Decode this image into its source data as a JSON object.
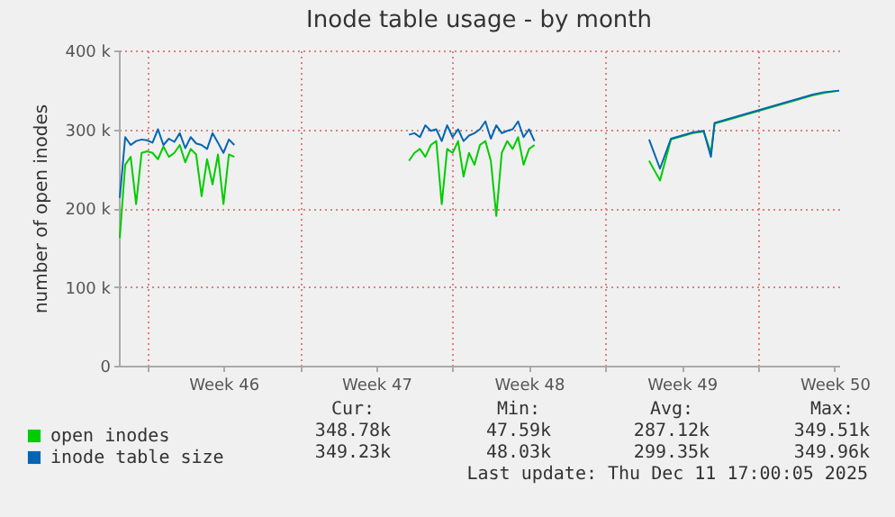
{
  "chart_data": {
    "type": "line",
    "title": "Inode table usage - by month",
    "ylabel": "number of open inodes",
    "x": [
      "2025-11-08T18:00",
      "2025-11-09T00:00",
      "2025-11-09T06:00",
      "2025-11-09T12:00",
      "2025-11-09T18:00",
      "2025-11-10T00:00",
      "2025-11-10T06:00",
      "2025-11-10T12:00",
      "2025-11-10T18:00",
      "2025-11-11T00:00",
      "2025-11-11T06:00",
      "2025-11-11T12:00",
      "2025-11-11T18:00",
      "2025-11-12T00:00",
      "2025-11-12T06:00",
      "2025-11-12T12:00",
      "2025-11-12T18:00",
      "2025-11-13T00:00",
      "2025-11-13T06:00",
      "2025-11-13T12:00",
      "2025-11-13T18:00",
      "2025-11-14T00:00",
      "2025-11-18T00:00",
      "2025-11-22T00:00",
      "2025-11-22T06:00",
      "2025-11-22T12:00",
      "2025-11-22T18:00",
      "2025-11-23T00:00",
      "2025-11-23T06:00",
      "2025-11-23T12:00",
      "2025-11-23T18:00",
      "2025-11-24T00:00",
      "2025-11-24T06:00",
      "2025-11-24T12:00",
      "2025-11-24T18:00",
      "2025-11-25T00:00",
      "2025-11-25T06:00",
      "2025-11-25T12:00",
      "2025-11-25T18:00",
      "2025-11-26T00:00",
      "2025-11-26T06:00",
      "2025-11-26T12:00",
      "2025-11-26T18:00",
      "2025-11-27T00:00",
      "2025-11-27T06:00",
      "2025-11-27T12:00",
      "2025-11-27T18:00",
      "2025-11-30T12:00",
      "2025-12-03T00:00",
      "2025-12-03T12:00",
      "2025-12-04T00:00",
      "2025-12-04T12:00",
      "2025-12-05T00:00",
      "2025-12-05T12:00",
      "2025-12-05T20:00",
      "2025-12-06T00:00",
      "2025-12-06T12:00",
      "2025-12-07T00:00",
      "2025-12-07T12:00",
      "2025-12-08T00:00",
      "2025-12-08T12:00",
      "2025-12-09T00:00",
      "2025-12-09T12:00",
      "2025-12-10T00:00",
      "2025-12-10T12:00",
      "2025-12-11T00:00",
      "2025-12-11T17:00"
    ],
    "series": [
      {
        "name": "open inodes",
        "color": "#00cc00",
        "values": [
          162000,
          255000,
          265000,
          205000,
          270000,
          272000,
          270000,
          262000,
          278000,
          265000,
          270000,
          280000,
          258000,
          275000,
          268000,
          215000,
          262000,
          230000,
          268000,
          205000,
          268000,
          265000,
          null,
          260000,
          270000,
          275000,
          265000,
          280000,
          285000,
          205000,
          275000,
          270000,
          285000,
          240000,
          270000,
          255000,
          280000,
          285000,
          260000,
          190000,
          270000,
          285000,
          275000,
          290000,
          255000,
          275000,
          280000,
          null,
          260000,
          235000,
          287000,
          291000,
          295000,
          297000,
          270000,
          307000,
          311000,
          315000,
          319000,
          323000,
          327000,
          331000,
          335000,
          339000,
          343000,
          346000,
          349000
        ]
      },
      {
        "name": "inode table size",
        "color": "#0066b3",
        "values": [
          213000,
          290000,
          280000,
          285000,
          287000,
          286000,
          283000,
          300000,
          280000,
          288000,
          284000,
          295000,
          276000,
          290000,
          282000,
          280000,
          275000,
          295000,
          283000,
          270000,
          287000,
          280000,
          null,
          293000,
          295000,
          290000,
          305000,
          298000,
          300000,
          285000,
          305000,
          290000,
          300000,
          285000,
          292000,
          295000,
          300000,
          310000,
          288000,
          305000,
          295000,
          298000,
          300000,
          310000,
          290000,
          300000,
          285000,
          null,
          287000,
          250000,
          288000,
          292000,
          296000,
          298000,
          265000,
          308000,
          312000,
          316000,
          320000,
          324000,
          328000,
          332000,
          336000,
          340000,
          344000,
          347000,
          349000
        ]
      }
    ],
    "xlim": [
      "2025-11-08T17:00",
      "2025-12-11T17:00"
    ],
    "xticks": [
      {
        "value": "2025-11-10T00:00",
        "label": null
      },
      {
        "value": "2025-11-13T12:00",
        "label": "Week 46"
      },
      {
        "value": "2025-11-17T00:00",
        "label": null
      },
      {
        "value": "2025-11-20T12:00",
        "label": "Week 47"
      },
      {
        "value": "2025-11-24T00:00",
        "label": null
      },
      {
        "value": "2025-11-27T12:00",
        "label": "Week 48"
      },
      {
        "value": "2025-12-01T00:00",
        "label": null
      },
      {
        "value": "2025-12-04T12:00",
        "label": "Week 49"
      },
      {
        "value": "2025-12-08T00:00",
        "label": null
      },
      {
        "value": "2025-12-11T12:00",
        "label": "Week 50"
      }
    ],
    "ylim": [
      0,
      400000
    ],
    "yticks": [
      0,
      {
        "value": 100000,
        "label": "100 k"
      },
      {
        "value": 200000,
        "label": "200 k"
      },
      {
        "value": 300000,
        "label": "300 k"
      },
      {
        "value": 400000,
        "label": "400 k"
      }
    ],
    "grid": true,
    "legend": "bottom left",
    "annotations": [
      "Cur:",
      "Min:",
      "Avg:",
      "Max:",
      "348.78k",
      "47.59k",
      "287.12k",
      "349.51k",
      "349.23k",
      "48.03k",
      "299.35k",
      "349.96k",
      "Last update: Thu Dec 11 17:00:05 2025"
    ]
  }
}
